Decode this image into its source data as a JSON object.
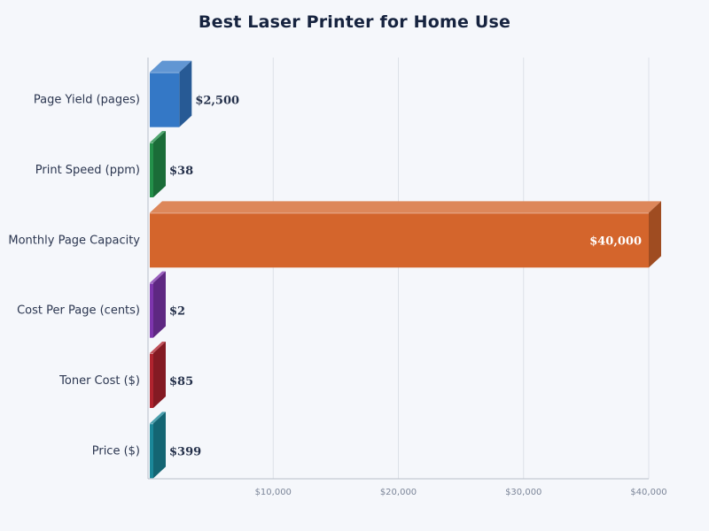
{
  "chart_data": {
    "type": "bar",
    "orientation": "horizontal",
    "title": "Best Laser Printer for Home Use",
    "xlabel": "",
    "ylabel": "",
    "categories": [
      "Page Yield (pages)",
      "Print Speed (ppm)",
      "Monthly Page Capacity",
      "Cost Per Page (cents)",
      "Toner Cost ($)",
      "Price ($)"
    ],
    "values": [
      2500,
      38,
      40000,
      2,
      85,
      399
    ],
    "value_labels": [
      "$2,500",
      "$38",
      "$40,000",
      "$2",
      "$85",
      "$399"
    ],
    "colors": [
      "#3478c6",
      "#23904a",
      "#d4652c",
      "#7d35ad",
      "#b0232e",
      "#1b8799"
    ],
    "xlim": [
      0,
      40000
    ],
    "xticks": [
      10000,
      20000,
      30000,
      40000
    ],
    "xtick_labels": [
      "$10,000",
      "$20,000",
      "$30,000",
      "$40,000"
    ],
    "grid": true,
    "legend": "none",
    "style": "3d-bars"
  }
}
